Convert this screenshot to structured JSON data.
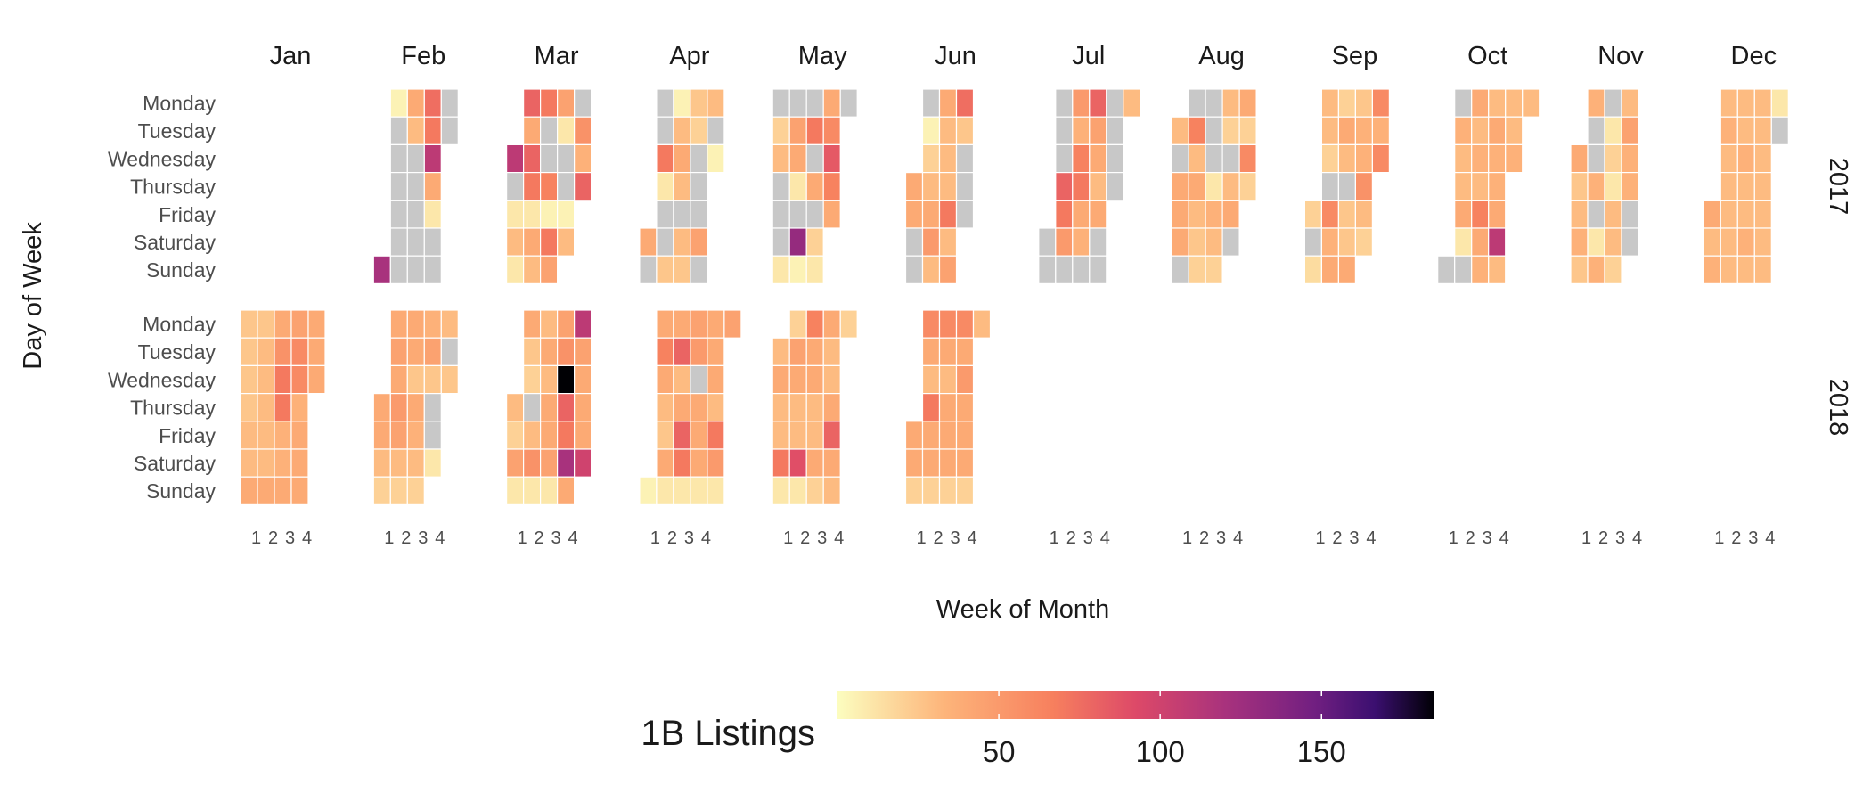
{
  "chart_data": {
    "type": "heatmap",
    "title": "",
    "xlabel": "Week of Month",
    "ylabel": "Day of Week",
    "months": [
      "Jan",
      "Feb",
      "Mar",
      "Apr",
      "May",
      "Jun",
      "Jul",
      "Aug",
      "Sep",
      "Oct",
      "Nov",
      "Dec"
    ],
    "days": [
      "Monday",
      "Tuesday",
      "Wednesday",
      "Thursday",
      "Friday",
      "Saturday",
      "Sunday"
    ],
    "week_ticks": [
      "1",
      "2",
      "3",
      "4"
    ],
    "years": [
      "2017",
      "2018"
    ],
    "legend": {
      "title": "1B Listings",
      "range": [
        0,
        185
      ],
      "ticks": [
        50,
        100,
        150
      ],
      "palette": "magma (reversed)",
      "missing_color": "#c8c8c8"
    },
    "note": "Each month lists weeks of the calendar; each week has 7 values Monday..Sunday. null = day outside month; -1 = no data (grey).",
    "data": {
      "2017": {
        "Jan": [
          [
            null,
            null,
            null,
            null,
            null,
            null,
            null
          ],
          [
            null,
            null,
            null,
            null,
            null,
            null,
            null
          ],
          [
            null,
            null,
            null,
            null,
            null,
            null,
            null
          ],
          [
            null,
            null,
            null,
            null,
            null,
            null,
            null
          ],
          [
            null,
            null,
            null,
            null,
            null,
            null,
            null
          ],
          [
            null,
            null,
            null,
            null,
            null,
            null,
            null
          ]
        ],
        "Feb": [
          [
            null,
            null,
            null,
            null,
            null,
            null,
            120
          ],
          [
            5,
            -1,
            -1,
            -1,
            -1,
            -1,
            -1
          ],
          [
            40,
            30,
            -1,
            -1,
            -1,
            -1,
            -1
          ],
          [
            75,
            70,
            110,
            40,
            10,
            -1,
            -1
          ],
          [
            -1,
            -1,
            null,
            null,
            null,
            null,
            null
          ]
        ],
        "Mar": [
          [
            null,
            null,
            110,
            -1,
            10,
            30,
            10
          ],
          [
            80,
            40,
            80,
            70,
            10,
            40,
            30
          ],
          [
            70,
            -1,
            -1,
            65,
            5,
            70,
            45
          ],
          [
            45,
            10,
            -1,
            -1,
            5,
            30,
            null
          ],
          [
            -1,
            55,
            35,
            80,
            null,
            null,
            null
          ]
        ],
        "Apr": [
          [
            null,
            null,
            null,
            null,
            null,
            40,
            -1
          ],
          [
            -1,
            -1,
            70,
            10,
            -1,
            -1,
            25
          ],
          [
            5,
            30,
            40,
            30,
            -1,
            30,
            25
          ],
          [
            25,
            20,
            -1,
            -1,
            -1,
            45,
            -1
          ],
          [
            30,
            -1,
            5,
            null,
            null,
            null,
            null
          ]
        ],
        "May": [
          [
            -1,
            20,
            30,
            -1,
            -1,
            -1,
            10
          ],
          [
            -1,
            45,
            40,
            10,
            -1,
            130,
            5
          ],
          [
            -1,
            70,
            -1,
            40,
            -1,
            20,
            10
          ],
          [
            40,
            60,
            85,
            65,
            40,
            null,
            null
          ],
          [
            -1,
            null,
            null,
            null,
            null,
            null,
            null
          ]
        ],
        "Jun": [
          [
            null,
            null,
            null,
            40,
            40,
            -1,
            -1
          ],
          [
            -1,
            5,
            20,
            30,
            40,
            50,
            30
          ],
          [
            40,
            30,
            30,
            30,
            70,
            30,
            45
          ],
          [
            75,
            25,
            -1,
            -1,
            -1,
            null,
            null
          ]
        ],
        "Jul": [
          [
            null,
            null,
            null,
            null,
            null,
            -1,
            -1
          ],
          [
            -1,
            -1,
            -1,
            80,
            70,
            50,
            -1
          ],
          [
            50,
            35,
            65,
            70,
            40,
            35,
            -1
          ],
          [
            80,
            45,
            40,
            30,
            40,
            -1,
            -1
          ],
          [
            -1,
            -1,
            -1,
            -1,
            null,
            null,
            null
          ],
          [
            30,
            null,
            null,
            null,
            null,
            null,
            null
          ]
        ],
        "Aug": [
          [
            null,
            30,
            -1,
            40,
            40,
            40,
            -1
          ],
          [
            -1,
            65,
            30,
            40,
            30,
            25,
            20
          ],
          [
            -1,
            -1,
            -1,
            10,
            35,
            30,
            20
          ],
          [
            30,
            20,
            -1,
            30,
            40,
            -1,
            null
          ],
          [
            40,
            20,
            60,
            20,
            null,
            null,
            null
          ]
        ],
        "Sep": [
          [
            null,
            null,
            null,
            null,
            20,
            -1,
            15
          ],
          [
            30,
            30,
            20,
            -1,
            60,
            35,
            40
          ],
          [
            20,
            40,
            30,
            -1,
            25,
            25,
            40
          ],
          [
            25,
            35,
            35,
            55,
            30,
            20,
            null
          ],
          [
            60,
            35,
            60,
            null,
            null,
            null,
            null
          ]
        ],
        "Oct": [
          [
            null,
            null,
            null,
            null,
            null,
            null,
            -1
          ],
          [
            -1,
            35,
            30,
            30,
            40,
            10,
            -1
          ],
          [
            40,
            30,
            35,
            30,
            65,
            40,
            35
          ],
          [
            30,
            40,
            35,
            35,
            40,
            110,
            30
          ],
          [
            30,
            30,
            35,
            null,
            null,
            null,
            null
          ],
          [
            30,
            null,
            null,
            null,
            null,
            null,
            null
          ]
        ],
        "Nov": [
          [
            null,
            null,
            40,
            25,
            30,
            35,
            25
          ],
          [
            35,
            -1,
            -1,
            35,
            -1,
            10,
            35
          ],
          [
            -1,
            10,
            20,
            10,
            30,
            30,
            20
          ],
          [
            30,
            45,
            35,
            35,
            -1,
            -1,
            null
          ]
        ],
        "Dec": [
          [
            null,
            null,
            null,
            null,
            40,
            30,
            35
          ],
          [
            30,
            35,
            30,
            30,
            30,
            30,
            30
          ],
          [
            30,
            30,
            35,
            30,
            30,
            35,
            30
          ],
          [
            30,
            30,
            30,
            30,
            30,
            30,
            30
          ],
          [
            10,
            -1,
            null,
            null,
            null,
            null,
            null
          ]
        ]
      },
      "2018": {
        "Jan": [
          [
            25,
            25,
            25,
            25,
            30,
            30,
            40
          ],
          [
            25,
            30,
            30,
            30,
            30,
            30,
            40
          ],
          [
            40,
            55,
            70,
            70,
            35,
            35,
            40
          ],
          [
            45,
            60,
            60,
            35,
            40,
            40,
            40
          ],
          [
            40,
            40,
            40,
            null,
            null,
            null,
            null
          ]
        ],
        "Feb": [
          [
            null,
            null,
            null,
            40,
            40,
            30,
            20
          ],
          [
            40,
            45,
            40,
            50,
            45,
            30,
            20
          ],
          [
            40,
            40,
            25,
            40,
            35,
            30,
            20
          ],
          [
            35,
            45,
            25,
            -1,
            -1,
            10,
            null
          ],
          [
            30,
            -1,
            25,
            null,
            null,
            null,
            null
          ]
        ],
        "Mar": [
          [
            null,
            null,
            null,
            30,
            20,
            45,
            10
          ],
          [
            40,
            25,
            20,
            -1,
            30,
            55,
            10
          ],
          [
            30,
            40,
            30,
            40,
            40,
            45,
            10
          ],
          [
            45,
            55,
            185,
            80,
            70,
            120,
            40
          ],
          [
            110,
            45,
            40,
            40,
            40,
            100,
            null
          ]
        ],
        "Apr": [
          [
            null,
            null,
            null,
            null,
            null,
            null,
            5
          ],
          [
            40,
            65,
            40,
            30,
            25,
            40,
            10
          ],
          [
            40,
            80,
            30,
            40,
            80,
            70,
            10
          ],
          [
            45,
            50,
            -1,
            40,
            40,
            40,
            10
          ],
          [
            40,
            40,
            40,
            30,
            70,
            50,
            10
          ],
          [
            45,
            null,
            null,
            null,
            null,
            null,
            null
          ]
        ],
        "May": [
          [
            null,
            30,
            40,
            30,
            30,
            70,
            10
          ],
          [
            20,
            45,
            40,
            30,
            30,
            90,
            10
          ],
          [
            65,
            40,
            40,
            30,
            30,
            40,
            20
          ],
          [
            40,
            30,
            30,
            40,
            80,
            40,
            30
          ],
          [
            20,
            null,
            null,
            null,
            null,
            null,
            null
          ]
        ],
        "Jun": [
          [
            null,
            null,
            null,
            null,
            40,
            40,
            20
          ],
          [
            60,
            40,
            30,
            70,
            40,
            40,
            20
          ],
          [
            60,
            40,
            30,
            40,
            40,
            40,
            20
          ],
          [
            60,
            40,
            50,
            40,
            40,
            40,
            20
          ],
          [
            30,
            null,
            null,
            null,
            null,
            null,
            null
          ]
        ]
      }
    }
  }
}
